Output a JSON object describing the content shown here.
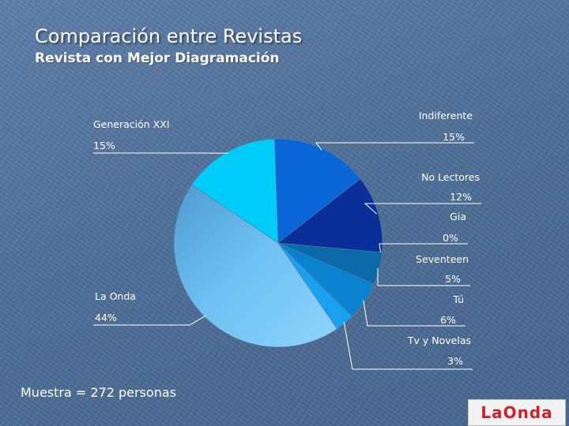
{
  "slide": {
    "title": "Comparación entre Revistas",
    "subtitle": "Revista con Mejor Diagramación",
    "footer": "Muestra = 272 personas",
    "logo_text": "LaOnda"
  },
  "chart_data": {
    "type": "pie",
    "title": "Revista con Mejor Diagramación",
    "slices": [
      {
        "label": "Indiferente",
        "value_label": "15%",
        "value": 15,
        "color": "#0a66d6"
      },
      {
        "label": "No Lectores",
        "value_label": "12%",
        "value": 12,
        "color": "#0a2f98"
      },
      {
        "label": "Gia",
        "value_label": "0%",
        "value": 0,
        "color": "#2a4fa8"
      },
      {
        "label": "Seventeen",
        "value_label": "5%",
        "value": 5,
        "color": "#0a6aa8"
      },
      {
        "label": "Tú",
        "value_label": "6%",
        "value": 6,
        "color": "#0a82cf"
      },
      {
        "label": "Tv y Novelas",
        "value_label": "3%",
        "value": 3,
        "color": "#1aa0f0"
      },
      {
        "label": "La Onda",
        "value_label": "44%",
        "value": 44,
        "color": "#6cc0f2"
      },
      {
        "label": "Generación XXI",
        "value_label": "15%",
        "value": 15,
        "color": "#00ccfa"
      }
    ],
    "legend": "none"
  }
}
